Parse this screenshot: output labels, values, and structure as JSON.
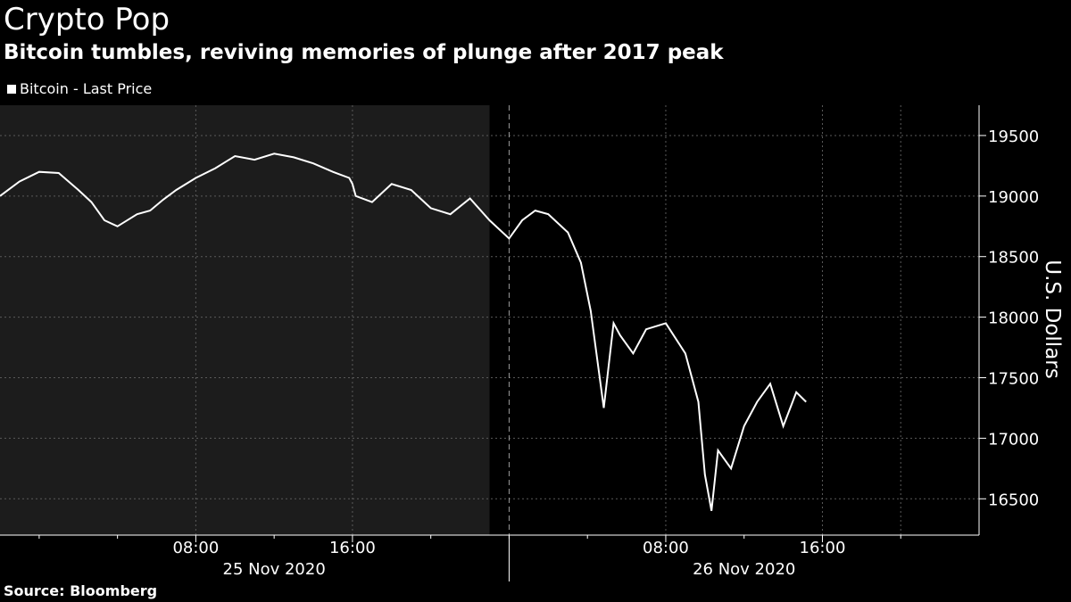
{
  "title": "Crypto Pop",
  "subtitle": "Bitcoin tumbles, reviving memories of plunge after 2017 peak",
  "source": "Source: Bloomberg",
  "colors": {
    "background": "#000000",
    "shaded_region": "#1c1c1c",
    "line": "#ffffff",
    "grid": "#5a5a5a",
    "text": "#ffffff"
  },
  "chart_data": {
    "type": "line",
    "title": "Crypto Pop",
    "subtitle": "Bitcoin tumbles, reviving memories of plunge after 2017 peak",
    "ylabel": "U.S. Dollars",
    "xlabel": "",
    "ylim": [
      16200,
      19750
    ],
    "xlim": [
      "2020-11-24T22:00",
      "2020-11-27T00:00"
    ],
    "y_ticks": [
      16500,
      17000,
      17500,
      18000,
      18500,
      19000,
      19500
    ],
    "x_ticks": [
      {
        "t": "2020-11-25T08:00",
        "label": "08:00"
      },
      {
        "t": "2020-11-25T16:00",
        "label": "16:00"
      },
      {
        "t": "2020-11-26T08:00",
        "label": "08:00"
      },
      {
        "t": "2020-11-26T16:00",
        "label": "16:00"
      }
    ],
    "x_minor_ticks": [
      "2020-11-25T00:00",
      "2020-11-25T04:00",
      "2020-11-25T12:00",
      "2020-11-25T20:00",
      "2020-11-26T00:00",
      "2020-11-26T04:00",
      "2020-11-26T12:00",
      "2020-11-26T20:00"
    ],
    "grid_x": [
      "2020-11-25T08:00",
      "2020-11-25T16:00",
      "2020-11-26T08:00",
      "2020-11-26T16:00",
      "2020-11-26T20:00"
    ],
    "date_labels": [
      {
        "t": "2020-11-25T12:00",
        "label": "25 Nov 2020"
      },
      {
        "t": "2020-11-26T12:00",
        "label": "26 Nov 2020"
      }
    ],
    "day_separators": [
      "2020-11-26T00:00"
    ],
    "shaded_region": [
      "2020-11-24T22:00",
      "2020-11-25T23:00"
    ],
    "grid": true,
    "legend": "top-left",
    "series": [
      {
        "name": "Bitcoin - Last Price",
        "x": [
          "2020-11-24T22:00",
          "2020-11-24T23:00",
          "2020-11-25T00:00",
          "2020-11-25T01:00",
          "2020-11-25T02:00",
          "2020-11-25T02:40",
          "2020-11-25T03:20",
          "2020-11-25T04:00",
          "2020-11-25T05:00",
          "2020-11-25T05:40",
          "2020-11-25T06:20",
          "2020-11-25T07:00",
          "2020-11-25T08:00",
          "2020-11-25T09:00",
          "2020-11-25T10:00",
          "2020-11-25T11:00",
          "2020-11-25T12:00",
          "2020-11-25T13:00",
          "2020-11-25T14:00",
          "2020-11-25T15:00",
          "2020-11-25T15:50",
          "2020-11-25T16:00",
          "2020-11-25T16:10",
          "2020-11-25T17:00",
          "2020-11-25T18:00",
          "2020-11-25T19:00",
          "2020-11-25T20:00",
          "2020-11-25T21:00",
          "2020-11-25T22:00",
          "2020-11-25T23:00",
          "2020-11-26T00:00",
          "2020-11-26T00:40",
          "2020-11-26T01:20",
          "2020-11-26T02:00",
          "2020-11-26T03:00",
          "2020-11-26T03:40",
          "2020-11-26T04:10",
          "2020-11-26T04:50",
          "2020-11-26T05:20",
          "2020-11-26T05:40",
          "2020-11-26T06:20",
          "2020-11-26T07:00",
          "2020-11-26T08:00",
          "2020-11-26T09:00",
          "2020-11-26T09:40",
          "2020-11-26T10:00",
          "2020-11-26T10:20",
          "2020-11-26T10:40",
          "2020-11-26T11:20",
          "2020-11-26T12:00",
          "2020-11-26T12:40",
          "2020-11-26T13:20",
          "2020-11-26T14:00",
          "2020-11-26T14:40",
          "2020-11-26T15:10"
        ],
        "values": [
          19000,
          19120,
          19200,
          19190,
          19050,
          18950,
          18800,
          18750,
          18850,
          18880,
          18970,
          19050,
          19150,
          19230,
          19330,
          19300,
          19350,
          19320,
          19270,
          19200,
          19150,
          19100,
          19000,
          18950,
          19100,
          19050,
          18900,
          18850,
          18980,
          18800,
          18650,
          18800,
          18880,
          18850,
          18700,
          18450,
          18050,
          17250,
          17950,
          17850,
          17700,
          17900,
          17950,
          17700,
          17300,
          16700,
          16400,
          16900,
          16750,
          17100,
          17300,
          17450,
          17100,
          17380,
          17300
        ]
      }
    ]
  }
}
